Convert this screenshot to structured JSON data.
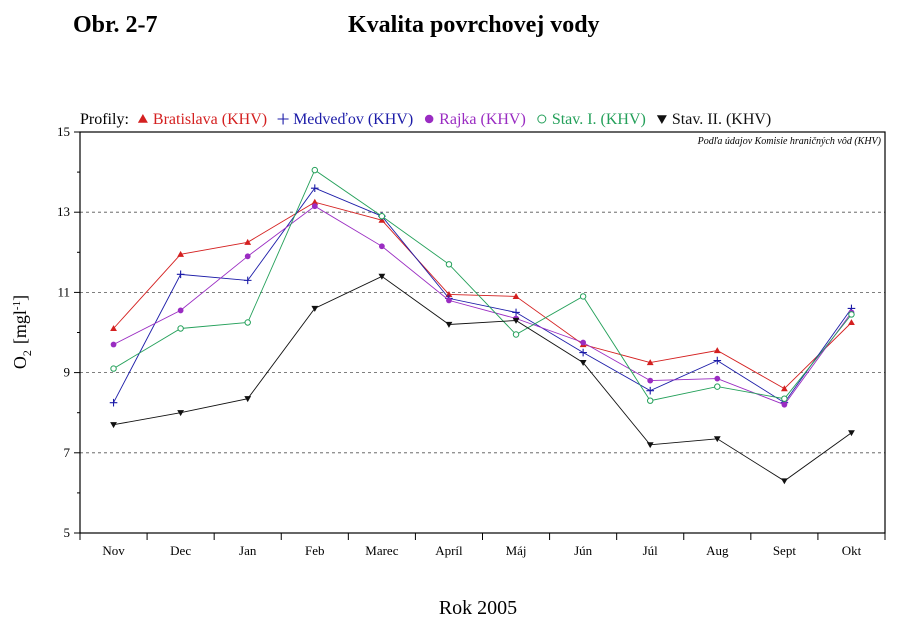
{
  "header": {
    "figure_number": "Obr. 2-7",
    "title": "Kvalita povrchovej vody"
  },
  "chart_data": {
    "type": "line",
    "legend_prefix": "Profily:",
    "source_note": "Podľa údajov Komisie hraničných vôd (KHV)",
    "ylabel": "O2 [mgl-1]",
    "ylabel_main": "O",
    "ylabel_sub": "2",
    "ylabel_unit": "[mgl",
    "ylabel_sup": "-1",
    "ylabel_close": "]",
    "xlabel": "Rok 2005",
    "ylim": [
      5,
      15
    ],
    "yticks": [
      5,
      7,
      9,
      11,
      13,
      15
    ],
    "grid": "horizontal dashed at 7, 9, 11, 13",
    "legend_position": "top",
    "categories": [
      "Nov",
      "Dec",
      "Jan",
      "Feb",
      "Marec",
      "Apríl",
      "Máj",
      "Jún",
      "Júl",
      "Aug",
      "Sept",
      "Okt"
    ],
    "series": [
      {
        "name": "Bratislava (KHV)",
        "color": "#d42020",
        "marker": "triangle-up",
        "values": [
          10.1,
          11.95,
          12.25,
          13.25,
          12.8,
          10.95,
          10.9,
          9.7,
          9.25,
          9.55,
          8.6,
          10.25
        ]
      },
      {
        "name": "Medveďov (KHV)",
        "color": "#1c1ca8",
        "marker": "plus",
        "values": [
          8.25,
          11.45,
          11.3,
          13.6,
          12.9,
          10.85,
          10.5,
          9.5,
          8.55,
          9.3,
          8.25,
          10.6
        ]
      },
      {
        "name": "Rajka (KHV)",
        "color": "#9a2cc2",
        "marker": "circle-filled",
        "values": [
          9.7,
          10.55,
          11.9,
          13.15,
          12.15,
          10.8,
          10.35,
          9.75,
          8.8,
          8.85,
          8.2,
          10.5
        ]
      },
      {
        "name": "Stav. I. (KHV)",
        "color": "#24a05a",
        "marker": "circle-open",
        "values": [
          9.1,
          10.1,
          10.25,
          14.05,
          12.9,
          11.7,
          9.95,
          10.9,
          8.3,
          8.65,
          8.35,
          10.45
        ]
      },
      {
        "name": "Stav. II. (KHV)",
        "color": "#111111",
        "marker": "triangle-down",
        "values": [
          7.7,
          8.0,
          8.35,
          10.6,
          11.4,
          10.2,
          10.3,
          9.25,
          7.2,
          7.35,
          6.3,
          7.5
        ]
      }
    ]
  }
}
